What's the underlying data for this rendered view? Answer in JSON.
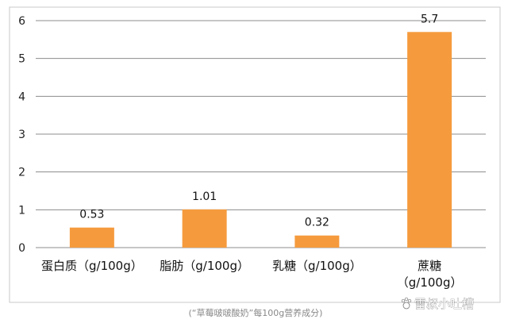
{
  "chart_data": {
    "type": "bar",
    "categories": [
      [
        "蛋白质（g/100g）"
      ],
      [
        "脂肪（g/100g）"
      ],
      [
        "乳糖（g/100g）"
      ],
      [
        "蔗糖",
        "（g/100g）"
      ]
    ],
    "values": [
      0.53,
      1.01,
      0.32,
      5.7
    ],
    "value_labels": [
      "0.53",
      "1.01",
      "0.32",
      "5.7"
    ],
    "y_ticks": [
      "0",
      "1",
      "2",
      "3",
      "4",
      "5",
      "6"
    ],
    "ylim": [
      0,
      6
    ],
    "grid": true,
    "bar_color": "#f59b3d",
    "grid_color": "#8c8c8c",
    "title": "",
    "xlabel": "",
    "ylabel": ""
  },
  "caption": "(“草莓啵啵酸奶”每100g营养成分)",
  "watermark": {
    "icon": "paw-icon",
    "text": "雷叔小吐槽"
  }
}
